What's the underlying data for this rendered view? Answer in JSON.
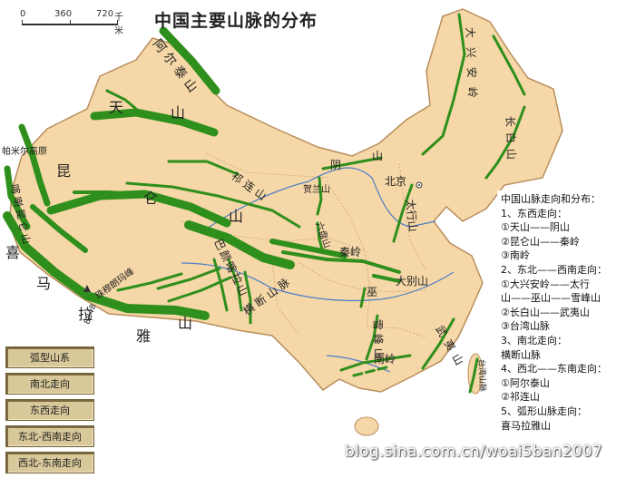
{
  "title": "中国主要山脉的分布",
  "scale": {
    "labels": [
      "0",
      "360",
      "720"
    ],
    "unit": "千米"
  },
  "ranges": [
    {
      "name": "阿尔泰山",
      "type": "northwest-southeast"
    },
    {
      "name": "天山",
      "type": "east-west"
    },
    {
      "name": "昆仑山",
      "type": "east-west"
    },
    {
      "name": "阴山",
      "type": "east-west"
    },
    {
      "name": "秦岭",
      "type": "east-west"
    },
    {
      "name": "南岭",
      "type": "east-west"
    },
    {
      "name": "大兴安岭",
      "type": "northeast-southwest"
    },
    {
      "name": "太行山",
      "type": "northeast-southwest"
    },
    {
      "name": "巫山",
      "type": "northeast-southwest"
    },
    {
      "name": "雪峰山",
      "type": "northeast-southwest"
    },
    {
      "name": "长白山",
      "type": "northeast-southwest"
    },
    {
      "name": "武夷山",
      "type": "northeast-southwest"
    },
    {
      "name": "台湾山脉",
      "type": "northeast-southwest"
    },
    {
      "name": "横断山脉",
      "type": "north-south"
    },
    {
      "name": "祁连山",
      "type": "northwest-southeast"
    },
    {
      "name": "喜马拉雅山",
      "type": "arc"
    },
    {
      "name": "贺兰山",
      "type": "north-south"
    },
    {
      "name": "六盘山",
      "type": "north-south"
    },
    {
      "name": "大别山",
      "type": "east-west"
    },
    {
      "name": "巴颜喀拉山",
      "type": "northwest-southeast"
    },
    {
      "name": "喀喇昆仑山",
      "type": "northwest-southeast"
    }
  ],
  "labels": {
    "altai": "阿 尔 泰 山",
    "tian1": "天",
    "tian2": "山",
    "kunlun1": "昆",
    "kunlun2": "仑",
    "kunlun3": "山",
    "qilian": "祁 连 山",
    "yin1": "阴",
    "yin2": "山",
    "helan": "贺兰山",
    "liupan": "六盘山",
    "qinling": "秦岭",
    "dabie": "大别山",
    "taihang": "太行山",
    "beijing": "北京",
    "daxinganling": "大兴安岭",
    "changbai": "长白山",
    "wu": "巫",
    "xuefeng": "雪峰山",
    "wuyi": "武夷山",
    "nanling": "南岭",
    "taiwan": "台湾山脉",
    "hengduan": "横 断 山 脉",
    "bayankala": "巴颜喀拉山",
    "himalaya1": "喜",
    "himalaya2": "马",
    "himalaya3": "拉",
    "himalaya4": "雅",
    "himalaya5": "山",
    "karakoram": "喀喇昆仑山",
    "pamir": "帕米尔高原",
    "everest": "珠穆朗玛峰",
    "everest_height": "8848"
  },
  "summary": [
    "中国山脉走向和分布：",
    "1、东西走向：",
    "①天山——阴山",
    "②昆仑山——秦岭",
    "③南岭",
    "2、东北——西南走向：",
    "①大兴安岭——太行",
    "山——巫山——雪峰山",
    "②长白山——武夷山",
    "③台湾山脉",
    "3、南北走向：",
    "横断山脉",
    "4、西北——东南走向：",
    "①阿尔泰山",
    "②祁连山",
    "5、弧形山脉走向：",
    "喜马拉雅山"
  ],
  "legend": [
    "弧型山系",
    "南北走向",
    "东西走向",
    "东北-西南走向",
    "西北-东南走向"
  ],
  "watermark": "blog.sina.com.cn/woai5ban2007",
  "colors": {
    "land": "#f6d7a7",
    "range": "#2f8f1c",
    "water": "#ffffff",
    "border": "#b98e5c"
  }
}
